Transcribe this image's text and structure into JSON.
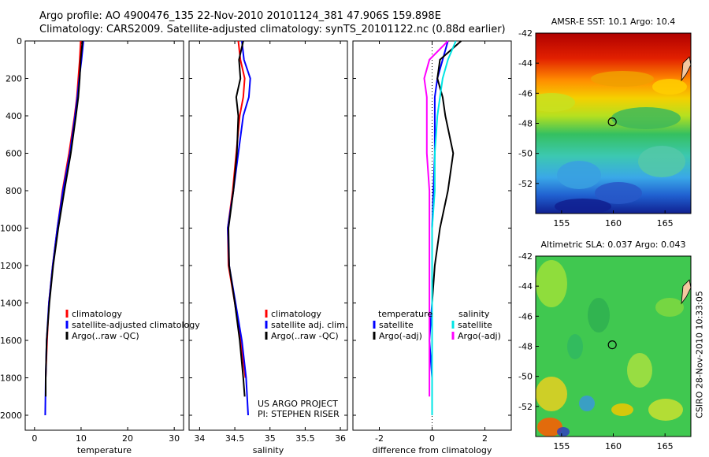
{
  "header": {
    "line1": "Argo profile: AO 4900476_135 22-Nov-2010 20101124_381 47.906S 159.898E",
    "line2": "Climatology: CARS2009. Satellite-adjusted climatology: synTS_20101122.nc (0.88d earlier)"
  },
  "colors": {
    "climatology": "#ff0000",
    "satellite": "#0000ff",
    "argo": "#000000",
    "sal_sat": "#00e5e5",
    "sal_argo": "#ff00ff"
  },
  "chart_data": [
    {
      "type": "line",
      "name": "temperature",
      "xlabel": "temperature",
      "ylabel": "",
      "xlim": [
        -2,
        32
      ],
      "ylim": [
        2080,
        0
      ],
      "xticks": [
        0,
        10,
        20,
        30
      ],
      "yticks": [
        0,
        200,
        400,
        600,
        800,
        1000,
        1200,
        1400,
        1600,
        1800,
        2000
      ],
      "legend": [
        "climatology",
        "satellite-adjusted climatology",
        "Argo(..raw -QC)"
      ],
      "series": [
        {
          "name": "climatology",
          "color": "red",
          "x": [
            9.9,
            9.7,
            9.4,
            9.1,
            8.6,
            7.4,
            6.0,
            4.9,
            3.9,
            3.1,
            2.7,
            2.4
          ],
          "y": [
            0,
            100,
            200,
            300,
            400,
            600,
            800,
            1000,
            1200,
            1400,
            1600,
            1800
          ]
        },
        {
          "name": "satellite-adjusted climatology",
          "color": "blue",
          "x": [
            10.5,
            10.1,
            9.6,
            9.2,
            8.7,
            7.6,
            6.1,
            4.9,
            3.9,
            3.1,
            2.6,
            2.4,
            2.3
          ],
          "y": [
            0,
            100,
            200,
            300,
            400,
            600,
            800,
            1000,
            1200,
            1400,
            1600,
            1800,
            2000
          ]
        },
        {
          "name": "Argo(..raw -QC)",
          "color": "black",
          "x": [
            10.3,
            9.9,
            9.7,
            9.4,
            8.9,
            7.8,
            6.4,
            5.1,
            4.0,
            3.2,
            2.6,
            2.4,
            2.4
          ],
          "y": [
            0,
            100,
            200,
            300,
            400,
            600,
            800,
            1000,
            1200,
            1400,
            1600,
            1800,
            1900
          ]
        }
      ]
    },
    {
      "type": "line",
      "name": "salinity",
      "xlabel": "salinity",
      "xlim": [
        33.85,
        36.1
      ],
      "ylim": [
        2080,
        0
      ],
      "xticks": [
        34,
        34.5,
        35,
        35.5,
        36
      ],
      "legend": [
        "climatology",
        "satellite adj. clim.",
        "Argo(..raw -QC)"
      ],
      "credit": [
        "US ARGO PROJECT",
        "PI: STEPHEN RISER"
      ],
      "series": [
        {
          "name": "climatology",
          "color": "red",
          "x": [
            34.55,
            34.58,
            34.64,
            34.62,
            34.57,
            34.52,
            34.47,
            34.4,
            34.41,
            34.5,
            34.58,
            34.65
          ],
          "y": [
            0,
            100,
            200,
            300,
            400,
            600,
            800,
            1000,
            1200,
            1400,
            1600,
            1800
          ]
        },
        {
          "name": "satellite adj. clim.",
          "color": "blue",
          "x": [
            34.6,
            34.63,
            34.72,
            34.7,
            34.62,
            34.55,
            34.48,
            34.4,
            34.42,
            34.51,
            34.6,
            34.66,
            34.69
          ],
          "y": [
            0,
            100,
            200,
            300,
            400,
            600,
            800,
            1000,
            1200,
            1400,
            1600,
            1800,
            2000
          ]
        },
        {
          "name": "Argo(..raw -QC)",
          "color": "black",
          "x": [
            34.62,
            34.56,
            34.58,
            34.52,
            34.55,
            34.53,
            34.48,
            34.41,
            34.42,
            34.5,
            34.57,
            34.62,
            34.64
          ],
          "y": [
            0,
            100,
            200,
            300,
            400,
            600,
            800,
            1000,
            1200,
            1400,
            1600,
            1800,
            1900
          ]
        }
      ]
    },
    {
      "type": "line",
      "name": "difference",
      "xlabel": "difference from climatology",
      "xlim": [
        -3,
        3
      ],
      "ylim": [
        2080,
        0
      ],
      "xticks": [
        -2,
        0,
        2
      ],
      "legend_temperature": {
        "title": "temperature",
        "items": [
          "satellite",
          "Argo(-adj)"
        ]
      },
      "legend_salinity": {
        "title": "salinity",
        "items": [
          "satellite",
          "Argo(-adj)"
        ]
      },
      "series": [
        {
          "name": "temperature satellite",
          "color": "blue",
          "x": [
            0.6,
            0.4,
            0.2,
            0.1,
            0.1,
            0.1,
            0.05,
            0.0,
            0.0,
            0.0,
            -0.1,
            0.0,
            0.0
          ],
          "y": [
            0,
            100,
            200,
            300,
            400,
            600,
            800,
            1000,
            1200,
            1400,
            1600,
            1800,
            2000
          ]
        },
        {
          "name": "temperature Argo(-adj)",
          "color": "black",
          "x": [
            1.1,
            0.3,
            0.2,
            0.4,
            0.5,
            0.8,
            0.6,
            0.3,
            0.1,
            0.0,
            0.0,
            0.0,
            0.0
          ],
          "y": [
            0,
            100,
            200,
            300,
            400,
            600,
            800,
            1000,
            1200,
            1400,
            1600,
            1800,
            1900
          ]
        },
        {
          "name": "salinity satellite",
          "color": "cyan",
          "x": [
            0.9,
            0.6,
            0.4,
            0.3,
            0.2,
            0.1,
            0.1,
            0.0,
            0.0,
            0.0,
            0.0,
            0.0,
            0.0
          ],
          "y": [
            0,
            100,
            200,
            300,
            400,
            600,
            800,
            1000,
            1200,
            1400,
            1600,
            1800,
            2000
          ]
        },
        {
          "name": "salinity Argo(-adj)",
          "color": "magenta",
          "x": [
            0.6,
            -0.1,
            -0.3,
            -0.2,
            -0.2,
            -0.2,
            -0.1,
            -0.1,
            -0.1,
            -0.1,
            -0.1,
            -0.1,
            -0.1
          ],
          "y": [
            0,
            100,
            200,
            300,
            400,
            600,
            800,
            1000,
            1200,
            1400,
            1600,
            1800,
            1900
          ]
        }
      ]
    },
    {
      "type": "heatmap",
      "name": "sst_map",
      "title": "AMSR-E SST: 10.1 Argo: 10.4",
      "xlim": [
        152.5,
        167.5
      ],
      "ylim": [
        -54,
        -42
      ],
      "xticks": [
        155,
        160,
        165
      ],
      "yticks": [
        -42,
        -44,
        -46,
        -48,
        -50,
        -52
      ],
      "marker": [
        159.9,
        -47.9
      ]
    },
    {
      "type": "heatmap",
      "name": "sla_map",
      "title": "Altimetric SLA: 0.037 Argo: 0.043",
      "xlim": [
        152.5,
        167.5
      ],
      "ylim": [
        -54,
        -42
      ],
      "xticks": [
        155,
        160,
        165
      ],
      "yticks": [
        -42,
        -44,
        -46,
        -48,
        -50,
        -52
      ],
      "marker": [
        159.9,
        -47.9
      ]
    }
  ],
  "footer": {
    "stamp": "CSIRO 28-Nov-2010 10:33:05"
  }
}
